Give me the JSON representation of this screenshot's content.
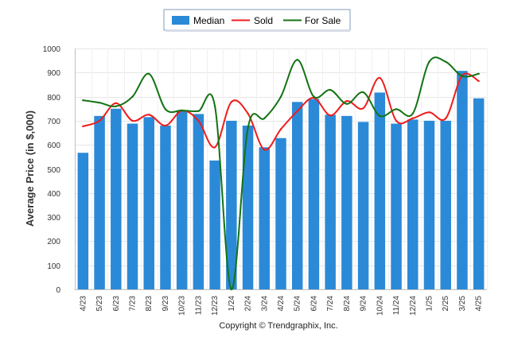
{
  "chart_data": {
    "type": "bar",
    "title": "",
    "xlabel": "",
    "ylabel": "Average Price (in $,000)",
    "ylim": [
      0,
      1000
    ],
    "yticks": [
      0,
      100,
      200,
      300,
      400,
      500,
      600,
      700,
      800,
      900,
      1000
    ],
    "grid": true,
    "legend_position": "top-center",
    "categories": [
      "4/23",
      "5/23",
      "6/23",
      "7/23",
      "8/23",
      "9/23",
      "10/23",
      "11/23",
      "12/23",
      "1/24",
      "2/24",
      "3/24",
      "4/24",
      "5/24",
      "6/24",
      "7/24",
      "8/24",
      "9/24",
      "10/24",
      "11/24",
      "12/24",
      "1/25",
      "2/25",
      "3/25",
      "4/25"
    ],
    "series": [
      {
        "name": "Median",
        "kind": "bar",
        "color": "#2b8ad8",
        "values": [
          567,
          720,
          750,
          688,
          715,
          680,
          740,
          728,
          535,
          700,
          680,
          590,
          628,
          778,
          790,
          725,
          720,
          695,
          817,
          688,
          705,
          700,
          700,
          907,
          793
        ]
      },
      {
        "name": "Sold",
        "kind": "line",
        "color": "#ee1c1c",
        "values": [
          677,
          700,
          773,
          700,
          725,
          680,
          742,
          700,
          590,
          778,
          730,
          580,
          665,
          740,
          795,
          722,
          782,
          752,
          878,
          700,
          710,
          735,
          710,
          888,
          865
        ]
      },
      {
        "name": "For Sale",
        "kind": "line",
        "color": "#137313",
        "values": [
          785,
          775,
          760,
          800,
          895,
          748,
          743,
          740,
          760,
          0,
          670,
          710,
          800,
          953,
          800,
          828,
          770,
          818,
          720,
          748,
          730,
          945,
          945,
          885,
          895
        ]
      }
    ],
    "footer": "Copyright © Trendgraphix, Inc."
  }
}
